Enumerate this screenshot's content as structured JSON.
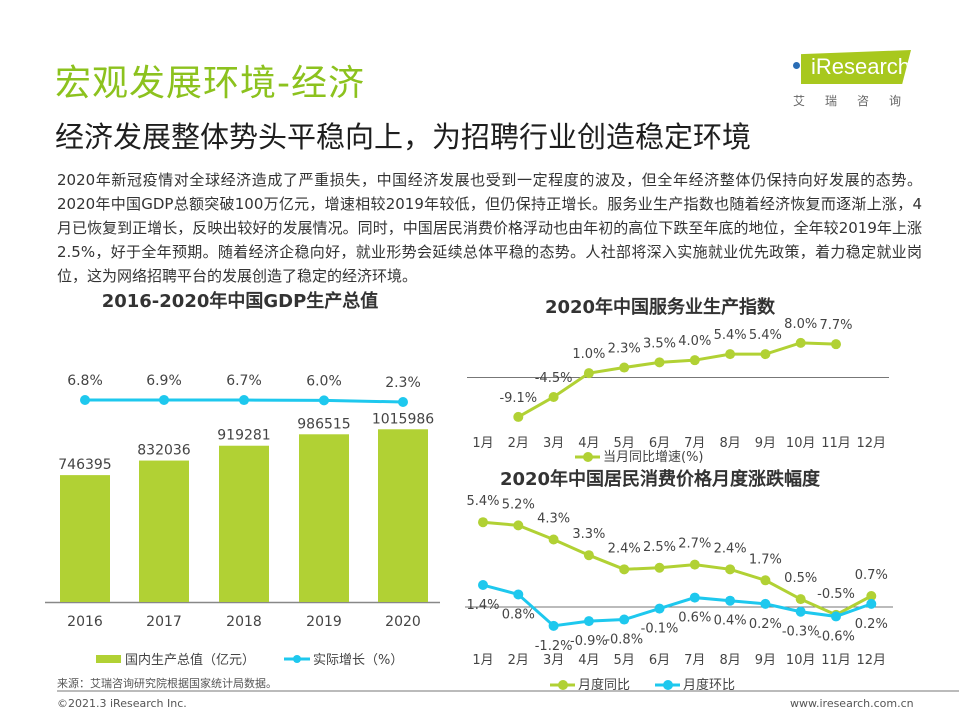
{
  "header": {
    "title": "宏观发展环境-经济",
    "subtitle": "经济发展整体势头平稳向上，为招聘行业创造稳定环境",
    "paragraph": "2020年新冠疫情对全球经济造成了严重损失，中国经济发展也受到一定程度的波及，但全年经济整体仍保持向好发展的态势。2020年中国GDP总额突破100万亿元，增速相较2019年较低，但仍保持正增长。服务业生产指数也随着经济恢复而逐渐上涨，4月已恢复到正增长，反映出较好的发展情况。同时，中国居民消费价格浮动也由年初的高位下跌至年底的地位，全年较2019年上涨2.5%，好于全年预期。随着经济企稳向好，就业形势会延续总体平稳的态势。人社部将深入实施就业优先政策，着力稳定就业岗位，这为网络招聘平台的发展创造了稳定的经济环境。"
  },
  "logo": {
    "brand": "iResearch",
    "cn": "艾瑞咨询"
  },
  "colors": {
    "green": "#b1d134",
    "cyan": "#1ec8ee",
    "title_green": "#8cc21e"
  },
  "chart_data": [
    {
      "type": "bar",
      "title": "2016-2020年中国GDP生产总值",
      "categories": [
        "2016",
        "2017",
        "2018",
        "2019",
        "2020"
      ],
      "series": [
        {
          "name": "国内生产总值（亿元）",
          "type": "bar",
          "values": [
            746395,
            832036,
            919281,
            986515,
            1015986
          ],
          "labels": [
            "746395",
            "832036",
            "919281",
            "986515",
            "1015986"
          ]
        },
        {
          "name": "实际增长（%）",
          "type": "line",
          "values": [
            6.8,
            6.9,
            6.7,
            6.0,
            2.3
          ],
          "labels": [
            "6.8%",
            "6.9%",
            "6.7%",
            "6.0%",
            "2.3%"
          ]
        }
      ],
      "legend": "bottom",
      "grid": false
    },
    {
      "type": "line",
      "title": "2020年中国服务业生产指数",
      "categories": [
        "1月",
        "2月",
        "3月",
        "4月",
        "5月",
        "6月",
        "7月",
        "8月",
        "9月",
        "10月",
        "11月",
        "12月"
      ],
      "series": [
        {
          "name": "当月同比增速(%)",
          "values": [
            null,
            -9.1,
            -4.5,
            1.0,
            2.3,
            3.5,
            4.0,
            5.4,
            5.4,
            8.0,
            7.7,
            null
          ],
          "labels": [
            "",
            "-9.1%",
            "-4.5%",
            "1.0%",
            "2.3%",
            "3.5%",
            "4.0%",
            "5.4%",
            "5.4%",
            "8.0%",
            "7.7%",
            ""
          ]
        }
      ],
      "legend": "bottom",
      "grid": false
    },
    {
      "type": "line",
      "title": "2020年中国居民消费价格月度涨跌幅度",
      "categories": [
        "1月",
        "2月",
        "3月",
        "4月",
        "5月",
        "6月",
        "7月",
        "8月",
        "9月",
        "10月",
        "11月",
        "12月"
      ],
      "series": [
        {
          "name": "月度同比",
          "values": [
            5.4,
            5.2,
            4.3,
            3.3,
            2.4,
            2.5,
            2.7,
            2.4,
            1.7,
            0.5,
            -0.5,
            0.7
          ],
          "labels": [
            "5.4%",
            "5.2%",
            "4.3%",
            "3.3%",
            "2.4%",
            "2.5%",
            "2.7%",
            "2.4%",
            "1.7%",
            "0.5%",
            "-0.5%",
            "0.7%"
          ]
        },
        {
          "name": "月度环比",
          "values": [
            1.4,
            0.8,
            -1.2,
            -0.9,
            -0.8,
            -0.1,
            0.6,
            0.4,
            0.2,
            -0.3,
            -0.6,
            0.2
          ],
          "labels": [
            "1.4%",
            "0.8%",
            "-1.2%",
            "-0.9%",
            "-0.8%",
            "-0.1%",
            "0.6%",
            "0.4%",
            "0.2%",
            "-0.3%",
            "-0.6%",
            "0.2%"
          ]
        }
      ],
      "legend": "bottom",
      "grid": false
    }
  ],
  "footer": {
    "source": "来源：艾瑞咨询研究院根据国家统计局数据。",
    "copyright": "©2021.3 iResearch Inc.",
    "website": "www.iresearch.com.cn"
  }
}
